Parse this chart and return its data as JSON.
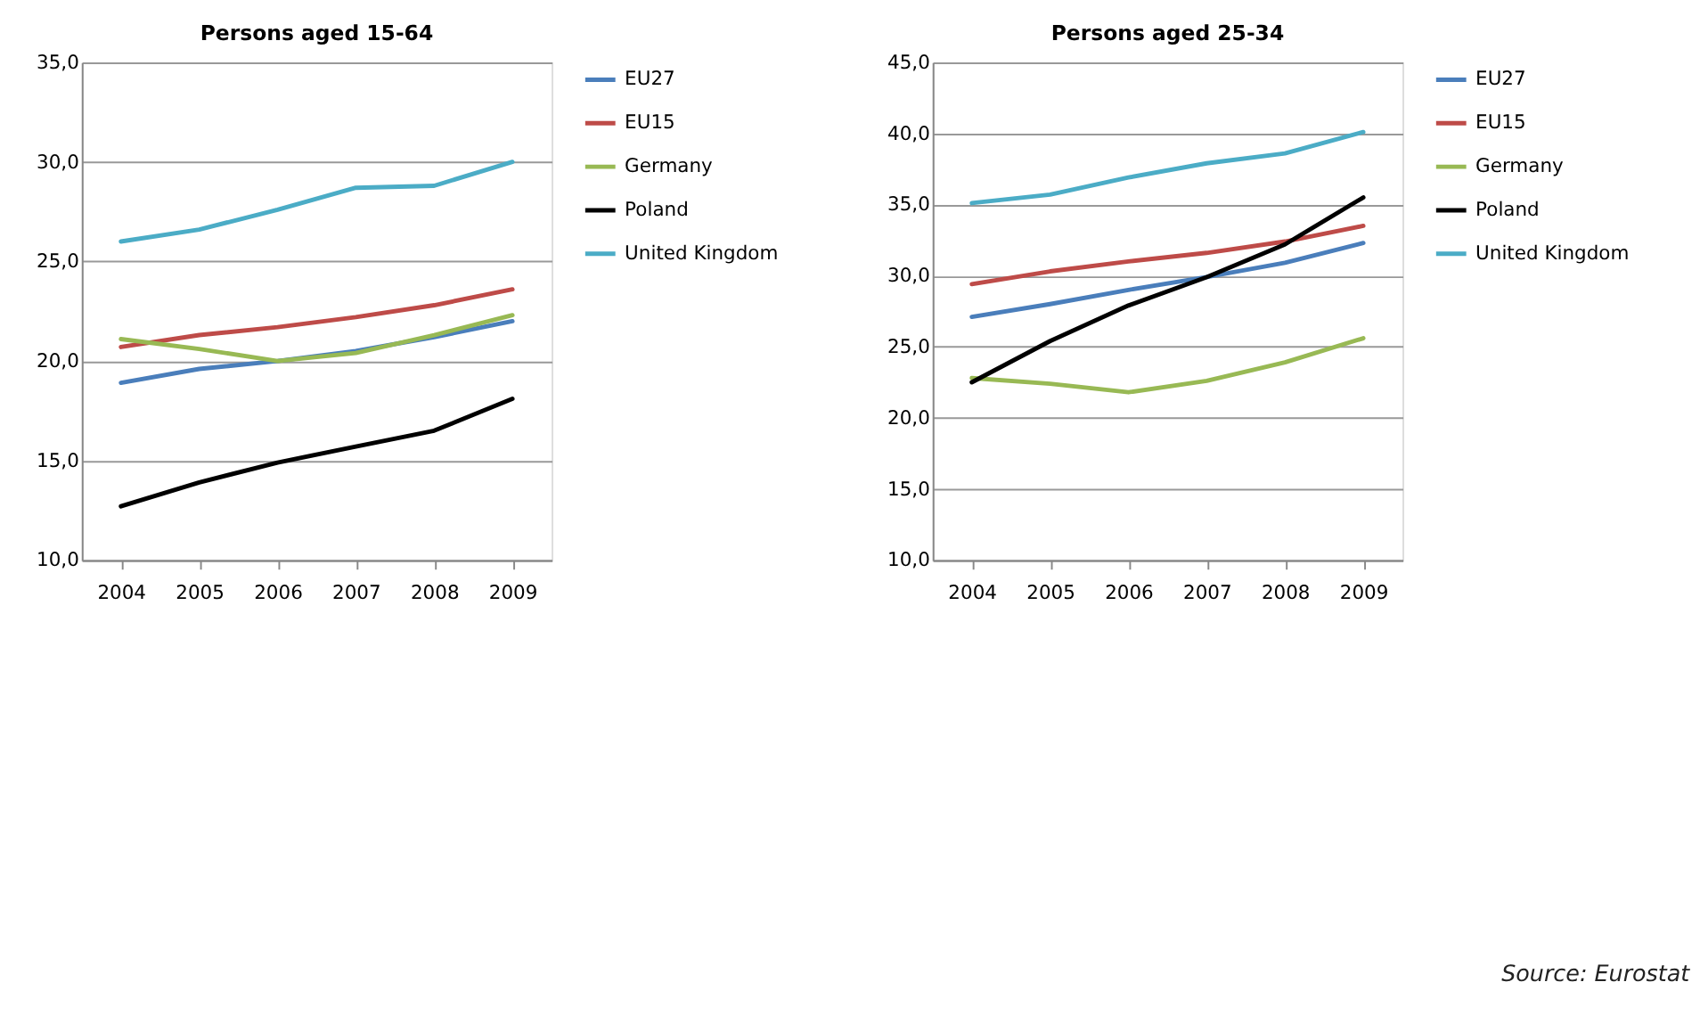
{
  "chart_data": [
    {
      "type": "line",
      "title": "Persons aged 15-64",
      "categories": [
        "2004",
        "2005",
        "2006",
        "2007",
        "2008",
        "2009"
      ],
      "series": [
        {
          "name": "EU27",
          "color": "#4a7ebb",
          "values": [
            18.9,
            19.6,
            20.0,
            20.5,
            21.2,
            22.0
          ]
        },
        {
          "name": "EU15",
          "color": "#be4b48",
          "values": [
            20.7,
            21.3,
            21.7,
            22.2,
            22.8,
            23.6
          ]
        },
        {
          "name": "Germany",
          "color": "#98b954",
          "values": [
            21.1,
            20.6,
            20.0,
            20.4,
            21.3,
            22.3
          ]
        },
        {
          "name": "Poland",
          "color": "#000000",
          "values": [
            12.7,
            13.9,
            14.9,
            15.7,
            16.5,
            18.1
          ]
        },
        {
          "name": "United Kingdom",
          "color": "#4bacc6",
          "values": [
            26.0,
            26.6,
            27.6,
            28.7,
            28.8,
            30.0
          ]
        }
      ],
      "ylim": [
        10,
        35
      ],
      "yticks": [
        {
          "value": 10,
          "label": "10,0"
        },
        {
          "value": 15,
          "label": "15,0"
        },
        {
          "value": 20,
          "label": "20,0"
        },
        {
          "value": 25,
          "label": "25,0"
        },
        {
          "value": 30,
          "label": "30,0"
        },
        {
          "value": 35,
          "label": "35,0"
        }
      ],
      "grid": "y",
      "legend": "right",
      "line_style": "solid",
      "marker": "none"
    },
    {
      "type": "line",
      "title": "Persons aged 25-34",
      "categories": [
        "2004",
        "2005",
        "2006",
        "2007",
        "2008",
        "2009"
      ],
      "series": [
        {
          "name": "EU27",
          "color": "#4a7ebb",
          "values": [
            27.1,
            28.0,
            29.0,
            29.9,
            30.9,
            32.3
          ]
        },
        {
          "name": "EU15",
          "color": "#be4b48",
          "values": [
            29.4,
            30.3,
            31.0,
            31.6,
            32.4,
            33.5
          ]
        },
        {
          "name": "Germany",
          "color": "#98b954",
          "values": [
            22.8,
            22.4,
            21.8,
            22.6,
            23.9,
            25.6
          ]
        },
        {
          "name": "Poland",
          "color": "#000000",
          "values": [
            22.5,
            25.4,
            27.9,
            29.9,
            32.2,
            35.5
          ]
        },
        {
          "name": "United Kingdom",
          "color": "#4bacc6",
          "values": [
            35.1,
            35.7,
            36.9,
            37.9,
            38.6,
            40.1
          ]
        }
      ],
      "ylim": [
        10,
        45
      ],
      "yticks": [
        {
          "value": 10,
          "label": "10,0"
        },
        {
          "value": 15,
          "label": "15,0"
        },
        {
          "value": 20,
          "label": "20,0"
        },
        {
          "value": 25,
          "label": "25,0"
        },
        {
          "value": 30,
          "label": "30,0"
        },
        {
          "value": 35,
          "label": "35,0"
        },
        {
          "value": 40,
          "label": "40,0"
        },
        {
          "value": 45,
          "label": "45,0"
        }
      ],
      "grid": "y",
      "legend": "right",
      "line_style": "solid",
      "marker": "none",
      "annotations": [
        "Source: Eurostat"
      ]
    }
  ]
}
